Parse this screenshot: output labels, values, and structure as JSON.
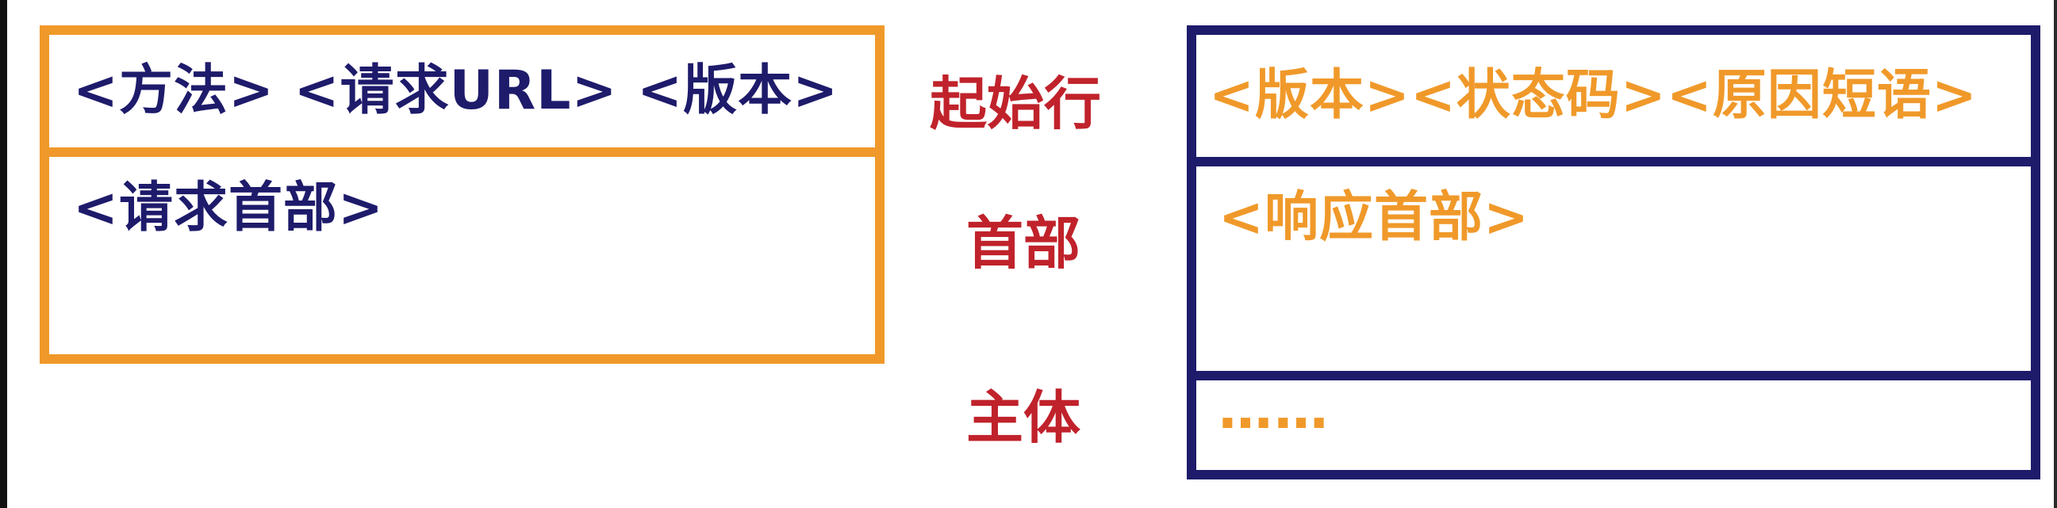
{
  "request": {
    "start_line": "<方法> <请求URL> <版本>",
    "headers": "<请求首部>"
  },
  "labels": {
    "start_line": "起始行",
    "headers": "首部",
    "body": "主体"
  },
  "response": {
    "start_line": "<版本><状态码><原因短语>",
    "headers": "<响应首部>",
    "body": "……"
  },
  "colors": {
    "request_border": "#f0992a",
    "response_border": "#1e1b6b",
    "label_red": "#c0222b",
    "request_text": "#1e1b6b",
    "response_text": "#f0992a"
  }
}
